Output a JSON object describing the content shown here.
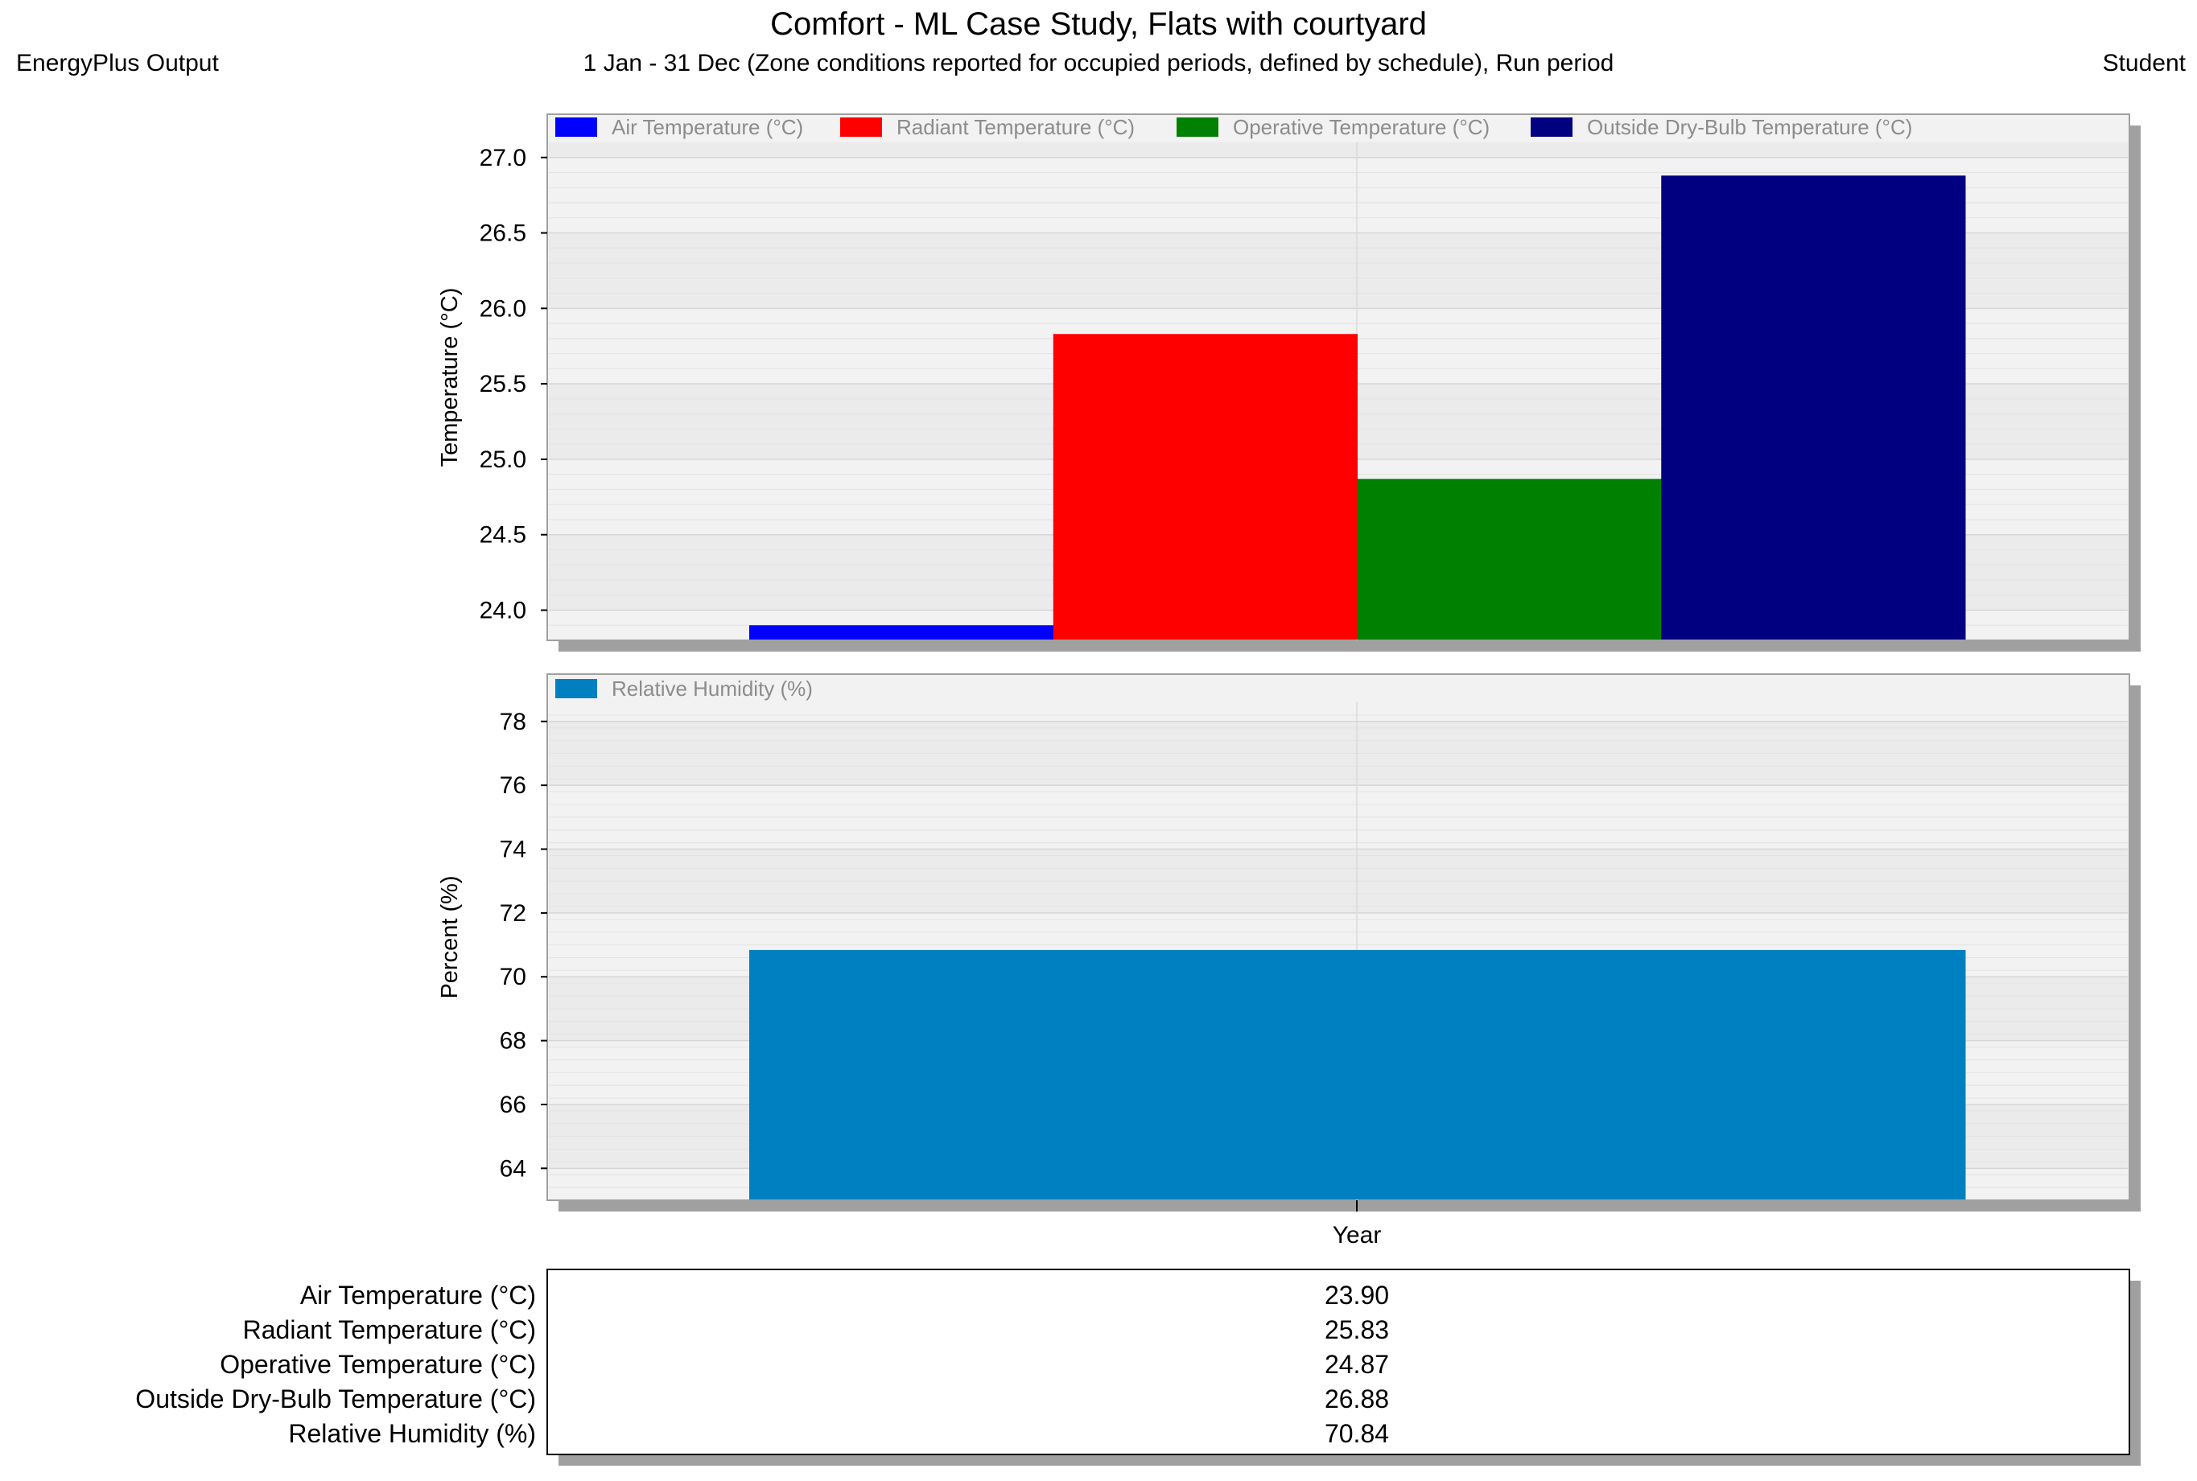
{
  "header": {
    "title": "Comfort - ML Case Study, Flats with courtyard",
    "subtitle": "1 Jan - 31 Dec (Zone conditions reported for occupied periods, defined by schedule), Run period",
    "left": "EnergyPlus Output",
    "right": "Student"
  },
  "chart_data": [
    {
      "type": "bar",
      "ylabel": "Temperature (°C)",
      "xlabel": "Year",
      "ylim": [
        23.8,
        27.1
      ],
      "yticks": [
        "24.0",
        "24.5",
        "25.0",
        "25.5",
        "26.0",
        "26.5",
        "27.0"
      ],
      "categories": [
        "Year"
      ],
      "series": [
        {
          "name": "Air Temperature (°C)",
          "color": "#0000ff",
          "values": [
            23.9
          ]
        },
        {
          "name": "Radiant Temperature (°C)",
          "color": "#ff0000",
          "values": [
            25.83
          ]
        },
        {
          "name": "Operative Temperature (°C)",
          "color": "#008000",
          "values": [
            24.87
          ]
        },
        {
          "name": "Outside Dry-Bulb Temperature (°C)",
          "color": "#000080",
          "values": [
            26.88
          ]
        }
      ]
    },
    {
      "type": "bar",
      "ylabel": "Percent (%)",
      "xlabel": "Year",
      "ylim": [
        63.0,
        78.6
      ],
      "yticks": [
        "64",
        "66",
        "68",
        "70",
        "72",
        "74",
        "76",
        "78"
      ],
      "categories": [
        "Year"
      ],
      "series": [
        {
          "name": "Relative Humidity (%)",
          "color": "#0080c0",
          "values": [
            70.84
          ]
        }
      ]
    }
  ],
  "table": {
    "rows": [
      {
        "label": "Air Temperature (°C)",
        "value": "23.90"
      },
      {
        "label": "Radiant Temperature (°C)",
        "value": "25.83"
      },
      {
        "label": "Operative Temperature (°C)",
        "value": "24.87"
      },
      {
        "label": "Outside Dry-Bulb Temperature (°C)",
        "value": "26.88"
      },
      {
        "label": "Relative Humidity (%)",
        "value": "70.84"
      }
    ]
  }
}
